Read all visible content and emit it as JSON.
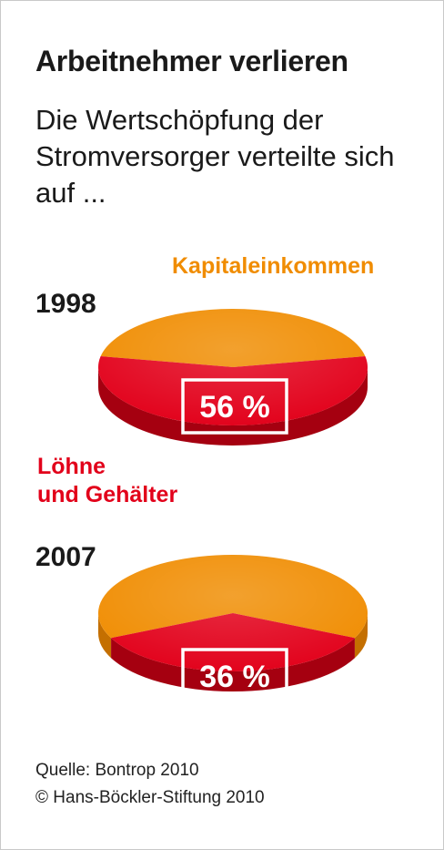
{
  "title": "Arbeitnehmer verlieren",
  "subtitle": "Die Wertschöpfung der Stromversorger verteilte sich auf ...",
  "colors": {
    "capital": "#f08c00",
    "capital_side": "#c46f00",
    "wages": "#e2001a",
    "wages_side": "#a50010"
  },
  "chart_data": [
    {
      "type": "pie",
      "title": "1998",
      "slices": [
        {
          "label": "Löhne und Gehälter",
          "value": 56,
          "display": "56 %"
        },
        {
          "label": "Kapitaleinkommen",
          "value": 44
        }
      ]
    },
    {
      "type": "pie",
      "title": "2007",
      "slices": [
        {
          "label": "Löhne und Gehälter",
          "value": 36,
          "display": "36 %"
        },
        {
          "label": "Kapitaleinkommen",
          "value": 64
        }
      ]
    }
  ],
  "legend": {
    "capital_label": "Kapitaleinkommen",
    "wages_label_line1": "Löhne",
    "wages_label_line2": "und Gehälter"
  },
  "footer": {
    "source": "Quelle: Bontrop 2010",
    "copyright": "© Hans-Böckler-Stiftung 2010"
  }
}
